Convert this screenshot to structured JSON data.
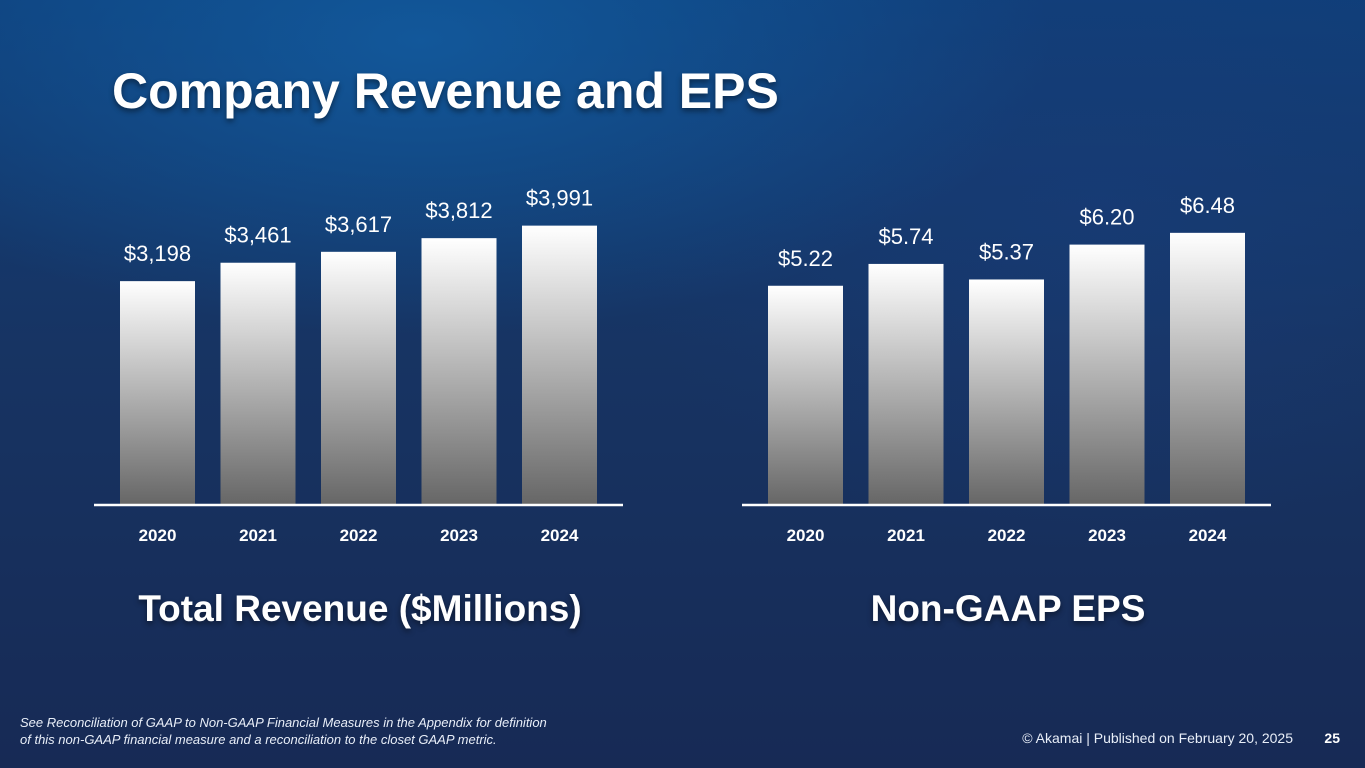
{
  "title": "Company Revenue and EPS",
  "colors": {
    "bar_top": "#ffffff",
    "bar_bottom": "#666666",
    "axis": "#ffffff",
    "background": "#173463"
  },
  "chart_data": [
    {
      "type": "bar",
      "title": "Total Revenue ($Millions)",
      "categories": [
        "2020",
        "2021",
        "2022",
        "2023",
        "2024"
      ],
      "values": [
        3198,
        3461,
        3617,
        3812,
        3991
      ],
      "value_labels": [
        "$3,198",
        "$3,461",
        "$3,617",
        "$3,812",
        "$3,991"
      ],
      "xlabel": "",
      "ylabel": "",
      "ylim": [
        0,
        4500
      ],
      "grid": false
    },
    {
      "type": "bar",
      "title": "Non-GAAP EPS",
      "categories": [
        "2020",
        "2021",
        "2022",
        "2023",
        "2024"
      ],
      "values": [
        5.22,
        5.74,
        5.37,
        6.2,
        6.48
      ],
      "value_labels": [
        "$5.22",
        "$5.74",
        "$5.37",
        "$6.20",
        "$6.48"
      ],
      "xlabel": "",
      "ylabel": "",
      "ylim": [
        0,
        7.5
      ],
      "grid": false
    }
  ],
  "footnote": {
    "line1": "See Reconciliation of GAAP to Non-GAAP Financial Measures in the Appendix for definition",
    "line2": "of this non-GAAP financial measure and a reconciliation to the closet GAAP metric."
  },
  "footer": {
    "copyright": "© Akamai  |  Published on February 20, 2025",
    "page_number": "25"
  }
}
